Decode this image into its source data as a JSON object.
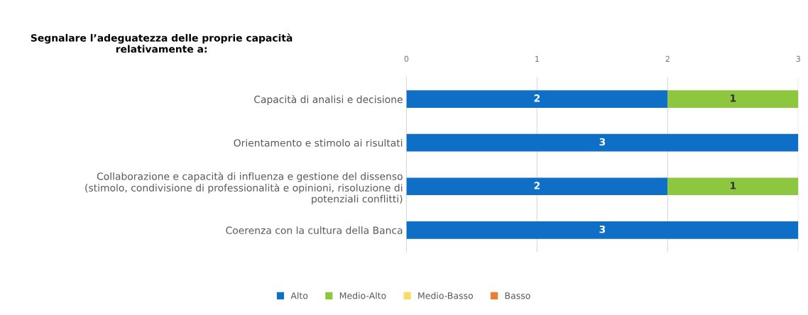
{
  "chart_data": {
    "type": "bar",
    "orientation": "horizontal",
    "stacked": true,
    "title": "Segnalare l’adeguatezza delle proprie capacità\nrelativamente a:",
    "categories": [
      "Capacità di analisi e decisione",
      "Orientamento e stimolo ai risultati",
      "Collaborazione e capacità di influenza e gestione del dissenso\n(stimolo, condivisione di professionalità e opinioni, risoluzione di\npotenziali conflitti)",
      "Coerenza con la cultura della Banca"
    ],
    "series": [
      {
        "name": "Alto",
        "color": "#0f6fc6",
        "values": [
          2,
          3,
          2,
          3
        ],
        "value_labels": [
          "2",
          "3",
          "2",
          "3"
        ]
      },
      {
        "name": "Medio-Alto",
        "color": "#8dc63f",
        "values": [
          1,
          0,
          1,
          0
        ],
        "value_labels": [
          "1",
          null,
          "1",
          null
        ]
      },
      {
        "name": "Medio-Basso",
        "color": "#ffd966",
        "values": [
          0,
          0,
          0,
          0
        ],
        "value_labels": [
          null,
          null,
          null,
          null
        ]
      },
      {
        "name": "Basso",
        "color": "#ed7d31",
        "values": [
          0,
          0,
          0,
          0
        ],
        "value_labels": [
          null,
          null,
          null,
          null
        ]
      }
    ],
    "xlim": [
      0,
      3
    ],
    "xticks": [
      0,
      1,
      2,
      3
    ],
    "grid": "x",
    "legend": "bottom"
  }
}
